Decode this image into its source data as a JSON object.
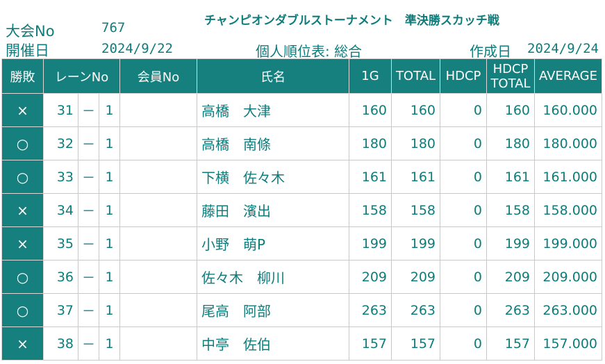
{
  "header": {
    "title": "チャンピオンダブルストーナメント　準決勝スカッチ戦",
    "taikai_label": "大会No",
    "taikai_value": "767",
    "kaisai_label": "開催日",
    "kaisai_value": "2024/9/22",
    "sheet_title": "個人順位表: 総合",
    "sakusei_label": "作成日",
    "sakusei_value": "2024/9/24"
  },
  "columns": {
    "result": "勝敗",
    "lane": "レーンNo",
    "member": "会員No",
    "name": "氏名",
    "g1": "1G",
    "total": "TOTAL",
    "hdcp": "HDCP",
    "hdcp_total_1": "HDCP",
    "hdcp_total_2": "TOTAL",
    "average": "AVERAGE"
  },
  "rows": [
    {
      "result": "×",
      "lane": "31",
      "dash": "－",
      "sub": "1",
      "member": "",
      "name": "高橋　大津",
      "g1": "160",
      "total": "160",
      "hdcp": "0",
      "hdcp_total": "160",
      "average": "160.000"
    },
    {
      "result": "○",
      "lane": "32",
      "dash": "－",
      "sub": "1",
      "member": "",
      "name": "高橋　南條",
      "g1": "180",
      "total": "180",
      "hdcp": "0",
      "hdcp_total": "180",
      "average": "180.000"
    },
    {
      "result": "○",
      "lane": "33",
      "dash": "－",
      "sub": "1",
      "member": "",
      "name": "下横　佐々木",
      "g1": "161",
      "total": "161",
      "hdcp": "0",
      "hdcp_total": "161",
      "average": "161.000"
    },
    {
      "result": "×",
      "lane": "34",
      "dash": "－",
      "sub": "1",
      "member": "",
      "name": "藤田　濱出",
      "g1": "158",
      "total": "158",
      "hdcp": "0",
      "hdcp_total": "158",
      "average": "158.000"
    },
    {
      "result": "×",
      "lane": "35",
      "dash": "－",
      "sub": "1",
      "member": "",
      "name": "小野　萌P",
      "g1": "199",
      "total": "199",
      "hdcp": "0",
      "hdcp_total": "199",
      "average": "199.000"
    },
    {
      "result": "○",
      "lane": "36",
      "dash": "－",
      "sub": "1",
      "member": "",
      "name": "佐々木　柳川",
      "g1": "209",
      "total": "209",
      "hdcp": "0",
      "hdcp_total": "209",
      "average": "209.000"
    },
    {
      "result": "○",
      "lane": "37",
      "dash": "－",
      "sub": "1",
      "member": "",
      "name": "尾高　阿部",
      "g1": "263",
      "total": "263",
      "hdcp": "0",
      "hdcp_total": "263",
      "average": "263.000"
    },
    {
      "result": "×",
      "lane": "38",
      "dash": "－",
      "sub": "1",
      "member": "",
      "name": "中亭　佐伯",
      "g1": "157",
      "total": "157",
      "hdcp": "0",
      "hdcp_total": "157",
      "average": "157.000"
    }
  ]
}
